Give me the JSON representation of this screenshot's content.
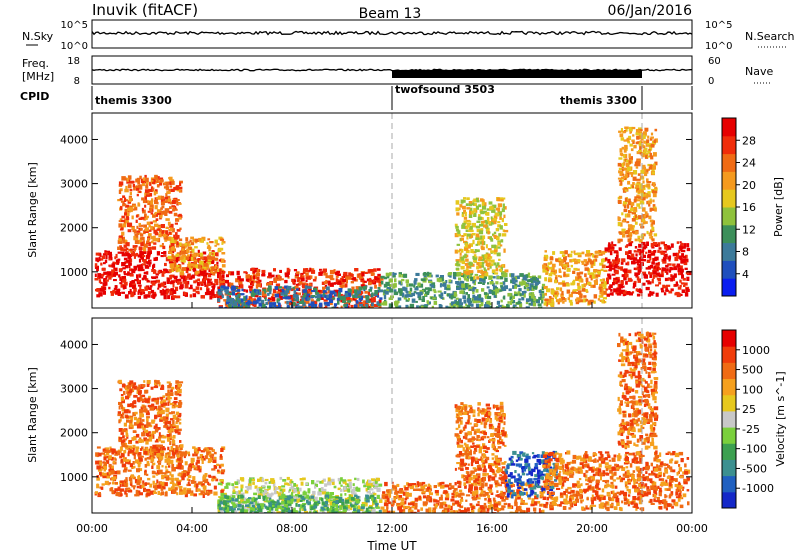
{
  "header": {
    "station": "Inuvik (fitACF)",
    "beam": "Beam 13",
    "date": "06/Jan/2016"
  },
  "noise_panel": {
    "left_label": "N.Sky",
    "right_label": "N.Search",
    "left_ticks": [
      "10^5",
      "10^0"
    ],
    "right_ticks": [
      "10^5",
      "10^0"
    ]
  },
  "freq_panel": {
    "left_label_line1": "Freq.",
    "left_label_line2": "[MHz]",
    "left_ticks": [
      "18",
      "8"
    ],
    "right_label": "Nave",
    "right_ticks": [
      "60",
      "0"
    ],
    "cpid_label": "CPID"
  },
  "cpid_segments": [
    {
      "name": "themis 3300",
      "start_hour": 0,
      "end_hour": 12
    },
    {
      "name": "twofsound 3503",
      "start_hour": 12,
      "end_hour": 22
    },
    {
      "name": "themis 3300",
      "start_hour": 22,
      "end_hour": 24
    }
  ],
  "power_colorbar": {
    "label": "Power [dB]",
    "ticks": [
      "4",
      "8",
      "12",
      "16",
      "20",
      "24",
      "28"
    ],
    "colors": [
      "#0a1ef0",
      "#1f4fbd",
      "#3c7a9a",
      "#3c8f5a",
      "#8fc23c",
      "#e6c81e",
      "#f59a1e",
      "#f06b14",
      "#f02d0a",
      "#e60000"
    ]
  },
  "velocity_colorbar": {
    "label": "Velocity [m s^-1]",
    "ticks": [
      "1000",
      "500",
      "100",
      "25",
      "-25",
      "-100",
      "-500",
      "-1000"
    ],
    "colors": [
      "#1428c8",
      "#2060c0",
      "#3c9090",
      "#3ca050",
      "#7ad03c",
      "#c8c8c8",
      "#e6c81e",
      "#f5a01e",
      "#f06b14",
      "#f03c0a",
      "#e60000"
    ]
  },
  "chart_data": {
    "type": "heatmap",
    "xlabel": "Time UT",
    "ylabel": "Slant Range [km]",
    "x_ticks": [
      "00:00",
      "04:00",
      "08:00",
      "12:00",
      "16:00",
      "20:00",
      "00:00"
    ],
    "x_range_hours": [
      0,
      24
    ],
    "ylim": [
      180,
      4600
    ],
    "y_ticks": [
      1000,
      2000,
      3000,
      4000
    ],
    "dashed_lines_hours": [
      12,
      22
    ],
    "power_regions": [
      {
        "t0": 0.1,
        "t1": 5.2,
        "r0": 450,
        "r1": 1500,
        "level": 9
      },
      {
        "t0": 3.0,
        "t1": 5.2,
        "r0": 1000,
        "r1": 1800,
        "level": 6
      },
      {
        "t0": 1.0,
        "t1": 3.5,
        "r0": 1500,
        "r1": 3200,
        "level": 7
      },
      {
        "t0": 5.0,
        "t1": 11.5,
        "r0": 200,
        "r1": 1100,
        "level": 8
      },
      {
        "t0": 5.0,
        "t1": 11.5,
        "r0": 200,
        "r1": 700,
        "level": 2
      },
      {
        "t0": 11.5,
        "t1": 18.0,
        "r0": 200,
        "r1": 1000,
        "level": 3
      },
      {
        "t0": 14.5,
        "t1": 16.5,
        "r0": 900,
        "r1": 2700,
        "level": 5
      },
      {
        "t0": 18.0,
        "t1": 20.5,
        "r0": 300,
        "r1": 1500,
        "level": 6
      },
      {
        "t0": 20.5,
        "t1": 23.8,
        "r0": 500,
        "r1": 1700,
        "level": 9
      },
      {
        "t0": 21.0,
        "t1": 22.5,
        "r0": 1700,
        "r1": 4300,
        "level": 6
      }
    ],
    "velocity_regions": [
      {
        "t0": 0.1,
        "t1": 5.2,
        "r0": 600,
        "r1": 1700,
        "level": 8
      },
      {
        "t0": 1.0,
        "t1": 3.5,
        "r0": 1500,
        "r1": 3200,
        "level": 8
      },
      {
        "t0": 5.0,
        "t1": 11.5,
        "r0": 200,
        "r1": 1000,
        "level": 5
      },
      {
        "t0": 5.0,
        "t1": 11.5,
        "r0": 200,
        "r1": 600,
        "level": 3
      },
      {
        "t0": 11.5,
        "t1": 18.0,
        "r0": 200,
        "r1": 900,
        "level": 8
      },
      {
        "t0": 14.5,
        "t1": 16.5,
        "r0": 900,
        "r1": 2700,
        "level": 8
      },
      {
        "t0": 16.5,
        "t1": 18.5,
        "r0": 600,
        "r1": 1600,
        "level": 1
      },
      {
        "t0": 18.0,
        "t1": 23.8,
        "r0": 300,
        "r1": 1600,
        "level": 8
      },
      {
        "t0": 21.0,
        "t1": 22.5,
        "r0": 1700,
        "r1": 4300,
        "level": 8
      }
    ]
  }
}
